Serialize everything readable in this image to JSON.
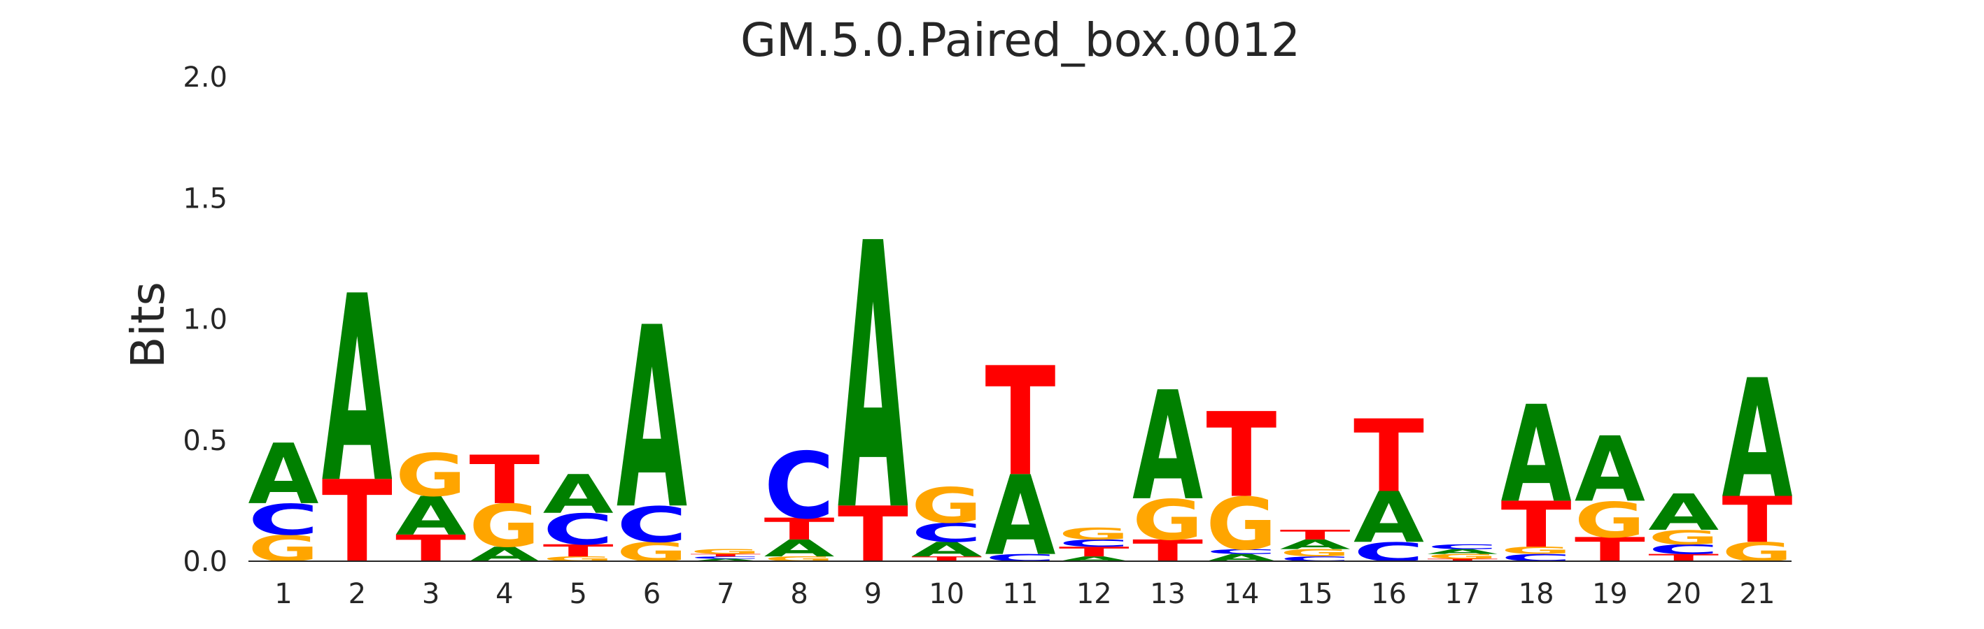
{
  "chart_data": {
    "type": "sequence-logo",
    "title": "GM.5.0.Paired_box.0012",
    "ylabel": "Bits",
    "xlabel": "",
    "ylim": [
      0,
      2.0
    ],
    "yticks": [
      "0.0",
      "0.5",
      "1.0",
      "1.5",
      "2.0"
    ],
    "colors": {
      "A": "#008000",
      "C": "#0000ff",
      "G": "#ffa500",
      "T": "#ff0000"
    },
    "positions": [
      {
        "label": "1",
        "stack": [
          [
            "G",
            0.11
          ],
          [
            "C",
            0.13
          ],
          [
            "A",
            0.25
          ]
        ]
      },
      {
        "label": "2",
        "stack": [
          [
            "T",
            0.34
          ],
          [
            "A",
            0.77
          ]
        ]
      },
      {
        "label": "3",
        "stack": [
          [
            "T",
            0.11
          ],
          [
            "A",
            0.16
          ],
          [
            "G",
            0.18
          ]
        ]
      },
      {
        "label": "4",
        "stack": [
          [
            "A",
            0.06
          ],
          [
            "G",
            0.18
          ],
          [
            "T",
            0.2
          ]
        ]
      },
      {
        "label": "5",
        "stack": [
          [
            "G",
            0.02
          ],
          [
            "T",
            0.05
          ],
          [
            "C",
            0.13
          ],
          [
            "A",
            0.16
          ]
        ]
      },
      {
        "label": "6",
        "stack": [
          [
            "G",
            0.08
          ],
          [
            "C",
            0.15
          ],
          [
            "A",
            0.75
          ]
        ]
      },
      {
        "label": "7",
        "stack": [
          [
            "A",
            0.01
          ],
          [
            "C",
            0.01
          ],
          [
            "T",
            0.01
          ],
          [
            "G",
            0.02
          ]
        ]
      },
      {
        "label": "8",
        "stack": [
          [
            "G",
            0.02
          ],
          [
            "A",
            0.07
          ],
          [
            "T",
            0.09
          ],
          [
            "C",
            0.28
          ]
        ]
      },
      {
        "label": "9",
        "stack": [
          [
            "T",
            0.23
          ],
          [
            "A",
            1.1
          ]
        ]
      },
      {
        "label": "10",
        "stack": [
          [
            "T",
            0.02
          ],
          [
            "A",
            0.06
          ],
          [
            "C",
            0.08
          ],
          [
            "G",
            0.15
          ]
        ]
      },
      {
        "label": "11",
        "stack": [
          [
            "C",
            0.03
          ],
          [
            "A",
            0.33
          ],
          [
            "T",
            0.45
          ]
        ]
      },
      {
        "label": "12",
        "stack": [
          [
            "A",
            0.02
          ],
          [
            "T",
            0.04
          ],
          [
            "C",
            0.03
          ],
          [
            "G",
            0.05
          ]
        ]
      },
      {
        "label": "13",
        "stack": [
          [
            "T",
            0.09
          ],
          [
            "G",
            0.17
          ],
          [
            "A",
            0.45
          ]
        ]
      },
      {
        "label": "14",
        "stack": [
          [
            "A",
            0.03
          ],
          [
            "C",
            0.02
          ],
          [
            "G",
            0.22
          ],
          [
            "T",
            0.35
          ]
        ]
      },
      {
        "label": "15",
        "stack": [
          [
            "C",
            0.02
          ],
          [
            "G",
            0.03
          ],
          [
            "A",
            0.04
          ],
          [
            "T",
            0.04
          ]
        ]
      },
      {
        "label": "16",
        "stack": [
          [
            "C",
            0.08
          ],
          [
            "A",
            0.21
          ],
          [
            "T",
            0.3
          ]
        ]
      },
      {
        "label": "17",
        "stack": [
          [
            "T",
            0.01
          ],
          [
            "G",
            0.02
          ],
          [
            "A",
            0.02
          ],
          [
            "C",
            0.02
          ]
        ]
      },
      {
        "label": "18",
        "stack": [
          [
            "C",
            0.03
          ],
          [
            "G",
            0.03
          ],
          [
            "T",
            0.19
          ],
          [
            "A",
            0.4
          ]
        ]
      },
      {
        "label": "19",
        "stack": [
          [
            "T",
            0.1
          ],
          [
            "G",
            0.15
          ],
          [
            "A",
            0.27
          ]
        ]
      },
      {
        "label": "20",
        "stack": [
          [
            "T",
            0.03
          ],
          [
            "C",
            0.04
          ],
          [
            "G",
            0.06
          ],
          [
            "A",
            0.15
          ]
        ]
      },
      {
        "label": "21",
        "stack": [
          [
            "G",
            0.08
          ],
          [
            "T",
            0.19
          ],
          [
            "A",
            0.49
          ]
        ]
      }
    ]
  }
}
